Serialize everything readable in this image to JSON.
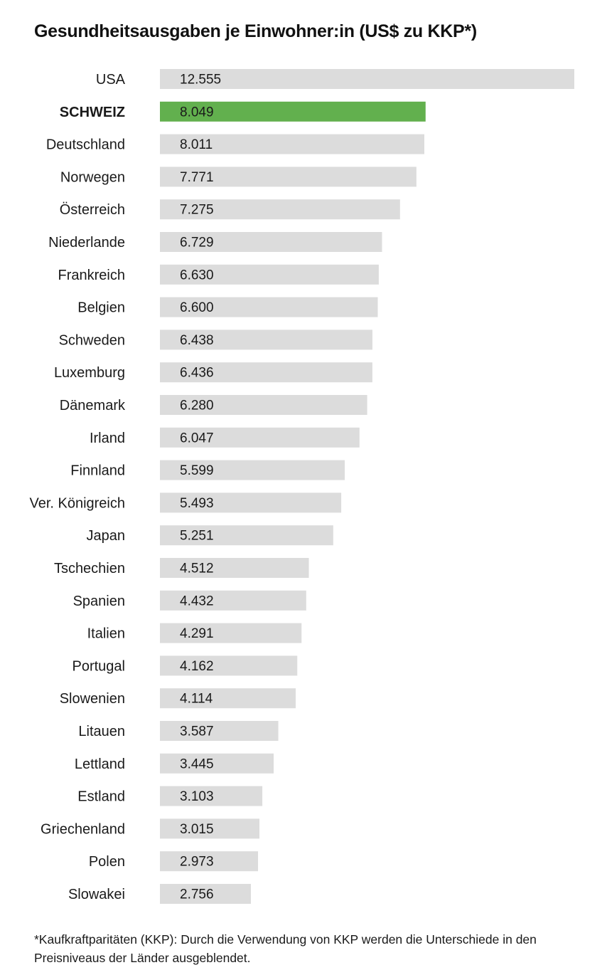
{
  "chart_data": {
    "type": "bar",
    "orientation": "horizontal",
    "title": "Gesundheitsausgaben je Einwohner:in (US$ zu KKP*)",
    "categories": [
      "USA",
      "SCHWEIZ",
      "Deutschland",
      "Norwegen",
      "Österreich",
      "Niederlande",
      "Frankreich",
      "Belgien",
      "Schweden",
      "Luxemburg",
      "Dänemark",
      "Irland",
      "Finnland",
      "Ver. Königreich",
      "Japan",
      "Tschechien",
      "Spanien",
      "Italien",
      "Portugal",
      "Slowenien",
      "Litauen",
      "Lettland",
      "Estland",
      "Griechenland",
      "Polen",
      "Slowakei"
    ],
    "values": [
      12555,
      8049,
      8011,
      7771,
      7275,
      6729,
      6630,
      6600,
      6438,
      6436,
      6280,
      6047,
      5599,
      5493,
      5251,
      4512,
      4432,
      4291,
      4162,
      4114,
      3587,
      3445,
      3103,
      3015,
      2973,
      2756
    ],
    "value_labels": [
      "12.555",
      "8.049",
      "8.011",
      "7.771",
      "7.275",
      "6.729",
      "6.630",
      "6.600",
      "6.438",
      "6.436",
      "6.280",
      "6.047",
      "5.599",
      "5.493",
      "5.251",
      "4.512",
      "4.432",
      "4.291",
      "4.162",
      "4.114",
      "3.587",
      "3.445",
      "3.103",
      "3.015",
      "2.973",
      "2.756"
    ],
    "highlight_index": 1,
    "xlabel": "",
    "ylabel": "",
    "xlim": [
      0,
      12555
    ],
    "grid": false,
    "colors": {
      "bar": "#dcdcdc",
      "highlight_bar": "#62b04e",
      "highlight_label": "#4eaa3c",
      "value_text": "#1a1a1a",
      "highlight_value_text": "#ffffff"
    }
  },
  "footnote": "*Kaufkraftparitäten (KKP): Durch die Verwendung von KKP werden die Unterschiede in den Preisniveaus der Länder ausgeblendet."
}
